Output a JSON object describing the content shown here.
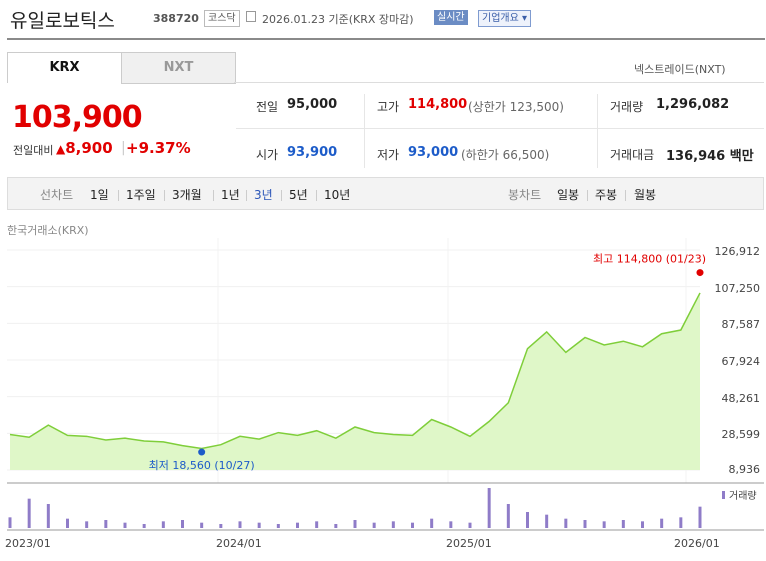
{
  "header": {
    "title": "유일로보틱스",
    "code": "388720",
    "market_badge": "코스닥",
    "date_text": "2026.01.23  기준(KRX 장마감)",
    "realtime_btn": "실시간",
    "corp_btn": "기업개요"
  },
  "tabs": [
    {
      "label": "KRX",
      "active": true
    },
    {
      "label": "NXT",
      "active": false
    }
  ],
  "nxt_link": "넥스트레이드(NXT)",
  "quote": {
    "price": "103,900",
    "change_label": "전일대비",
    "change": "8,900",
    "change_pct": "+9.37%",
    "prev_label": "전일",
    "prev": "95,000",
    "high_label": "고가",
    "high": "114,800",
    "upper_limit": "(상한가 123,500)",
    "volume_label": "거래량",
    "volume": "1,296,082",
    "open_label": "시가",
    "open": "93,900",
    "low_label": "저가",
    "low": "93,000",
    "lower_limit": "(하한가 66,500)",
    "amount_label": "거래대금",
    "amount": "136,946 백만"
  },
  "period_bar": {
    "line_label": "선차트",
    "line_periods": [
      "1일",
      "1주일",
      "3개월",
      "1년",
      "3년",
      "5년",
      "10년"
    ],
    "active_period": "3년",
    "candle_label": "봉차트",
    "candle_periods": [
      "일봉",
      "주봉",
      "월봉"
    ]
  },
  "chart_data": {
    "type": "area",
    "source_label": "한국거래소(KRX)",
    "y_ticks": [
      "126,912",
      "107,250",
      "87,587",
      "67,924",
      "48,261",
      "28,599",
      "8,936"
    ],
    "y_range": [
      8936,
      126912
    ],
    "x_ticks": [
      "2023/01",
      "2024/01",
      "2025/01",
      "2026/01"
    ],
    "high_annotation": "최고 114,800 (01/23)",
    "low_annotation": "최저 18,560 (10/27)",
    "volume_legend": "거래량",
    "line_color": "#7fce3a",
    "fill_color": "#dff7c8",
    "volume_color": "#8f7cc8",
    "x": [
      "2023/01",
      "2023/02",
      "2023/03",
      "2023/04",
      "2023/05",
      "2023/06",
      "2023/07",
      "2023/08",
      "2023/09",
      "2023/10",
      "2023/11",
      "2023/12",
      "2024/01",
      "2024/02",
      "2024/03",
      "2024/04",
      "2024/05",
      "2024/06",
      "2024/07",
      "2024/08",
      "2024/09",
      "2024/10",
      "2024/11",
      "2024/12",
      "2025/01",
      "2025/02",
      "2025/03",
      "2025/04",
      "2025/05",
      "2025/06",
      "2025/07",
      "2025/08",
      "2025/09",
      "2025/10",
      "2025/11",
      "2025/12",
      "2026/01"
    ],
    "values": [
      28000,
      26500,
      33000,
      27500,
      27000,
      25000,
      26000,
      24500,
      24000,
      22000,
      20500,
      22500,
      27000,
      25500,
      29000,
      27500,
      30000,
      26000,
      32000,
      29000,
      28000,
      27500,
      36000,
      32000,
      27000,
      35000,
      45000,
      74000,
      83000,
      72000,
      80000,
      76000,
      78000,
      75000,
      82000,
      84000,
      103900
    ],
    "volume": [
      8,
      22,
      18,
      7,
      5,
      6,
      4,
      3,
      5,
      6,
      4,
      3,
      5,
      4,
      3,
      4,
      5,
      3,
      6,
      4,
      5,
      4,
      7,
      5,
      4,
      30,
      18,
      12,
      10,
      7,
      6,
      5,
      6,
      5,
      7,
      8,
      16
    ]
  }
}
